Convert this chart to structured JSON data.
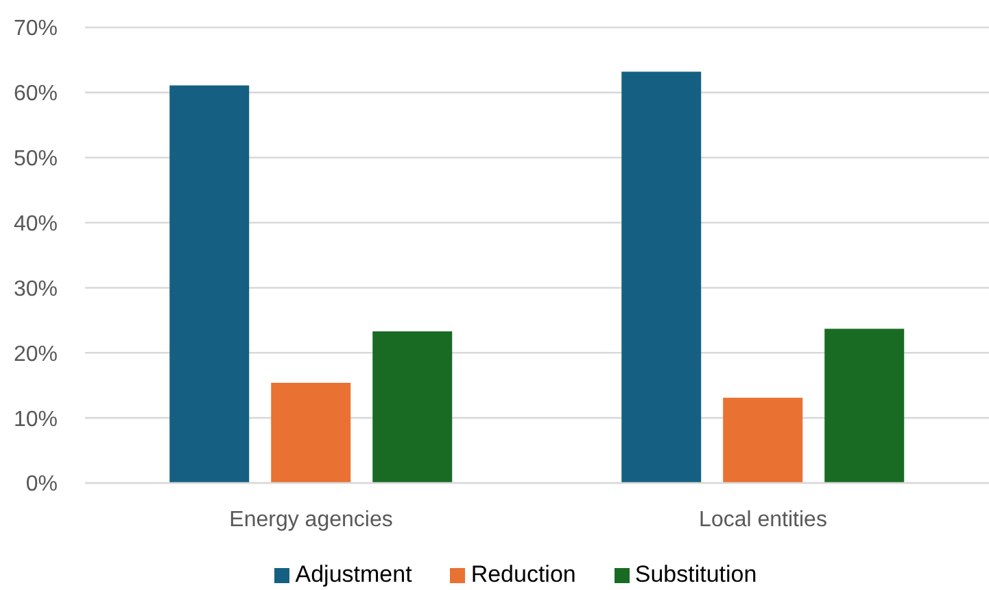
{
  "chart_data": {
    "type": "bar",
    "categories": [
      "Energy agencies",
      "Local entities"
    ],
    "series": [
      {
        "name": "Adjustment",
        "color": "#156082",
        "values": [
          61.1,
          63.2
        ]
      },
      {
        "name": "Reduction",
        "color": "#e97132",
        "values": [
          15.4,
          13.1
        ]
      },
      {
        "name": "Substitution",
        "color": "#196b24",
        "values": [
          23.3,
          23.7
        ]
      }
    ],
    "ylim": [
      0,
      70
    ],
    "yticks": [
      {
        "value": 0,
        "label": "0%"
      },
      {
        "value": 10,
        "label": "10%"
      },
      {
        "value": 20,
        "label": "20%"
      },
      {
        "value": 30,
        "label": "30%"
      },
      {
        "value": 40,
        "label": "40%"
      },
      {
        "value": 50,
        "label": "50%"
      },
      {
        "value": 60,
        "label": "60%"
      },
      {
        "value": 70,
        "label": "70%"
      }
    ],
    "grid": "y",
    "legend": "bottom"
  }
}
